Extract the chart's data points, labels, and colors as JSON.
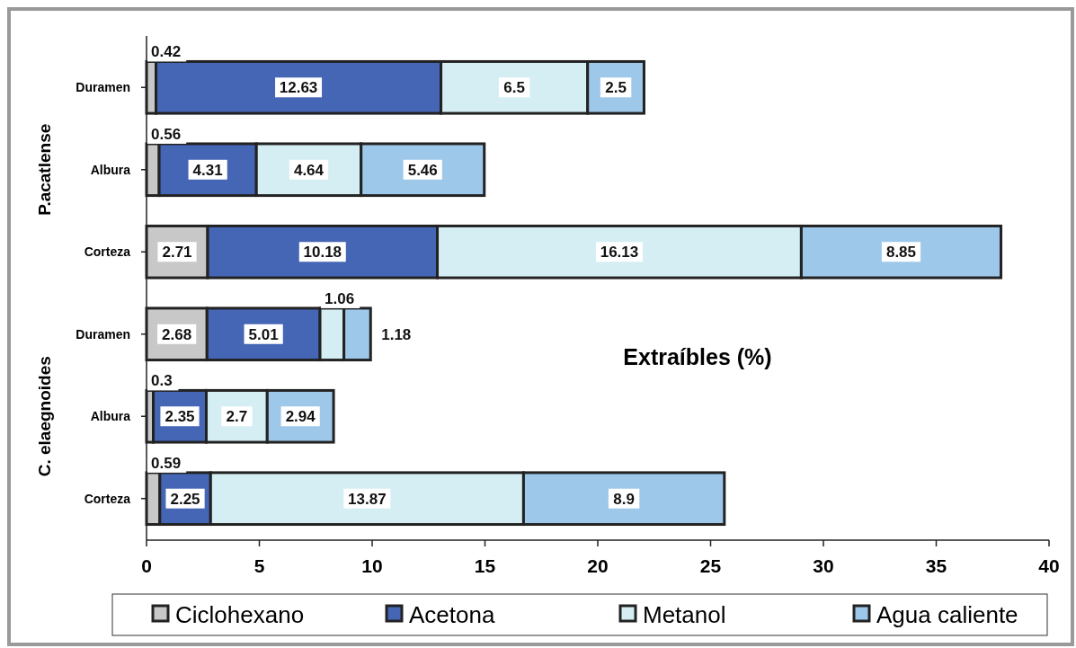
{
  "chart_data": {
    "type": "bar",
    "orientation": "horizontal",
    "stacked": true,
    "xlabel": "Extraíbles (%)",
    "categories": [
      "Duramen",
      "Albura",
      "Corteza",
      "Duramen",
      "Albura",
      "Corteza"
    ],
    "series": [
      {
        "name": "Ciclohexano",
        "color": "#c8c8c8",
        "values": [
          0.42,
          0.56,
          2.71,
          2.68,
          0.3,
          0.59
        ]
      },
      {
        "name": "Acetona",
        "color": "#4565b5",
        "values": [
          12.63,
          4.31,
          10.18,
          5.01,
          2.35,
          2.25
        ]
      },
      {
        "name": "Metanol",
        "color": "#d5eef4",
        "values": [
          6.5,
          4.64,
          16.13,
          1.06,
          2.7,
          13.87
        ]
      },
      {
        "name": "Agua caliente",
        "color": "#9ec8ea",
        "values": [
          2.5,
          5.46,
          8.85,
          1.18,
          2.94,
          8.9
        ]
      }
    ],
    "xlim": [
      0,
      40
    ],
    "xticks": [
      0,
      5,
      10,
      15,
      20,
      25,
      30,
      35,
      40
    ],
    "data_labels": true,
    "legend": "bottom",
    "grid": false,
    "annotations": [
      "P.acatlense",
      "C. elaegnoides"
    ]
  }
}
